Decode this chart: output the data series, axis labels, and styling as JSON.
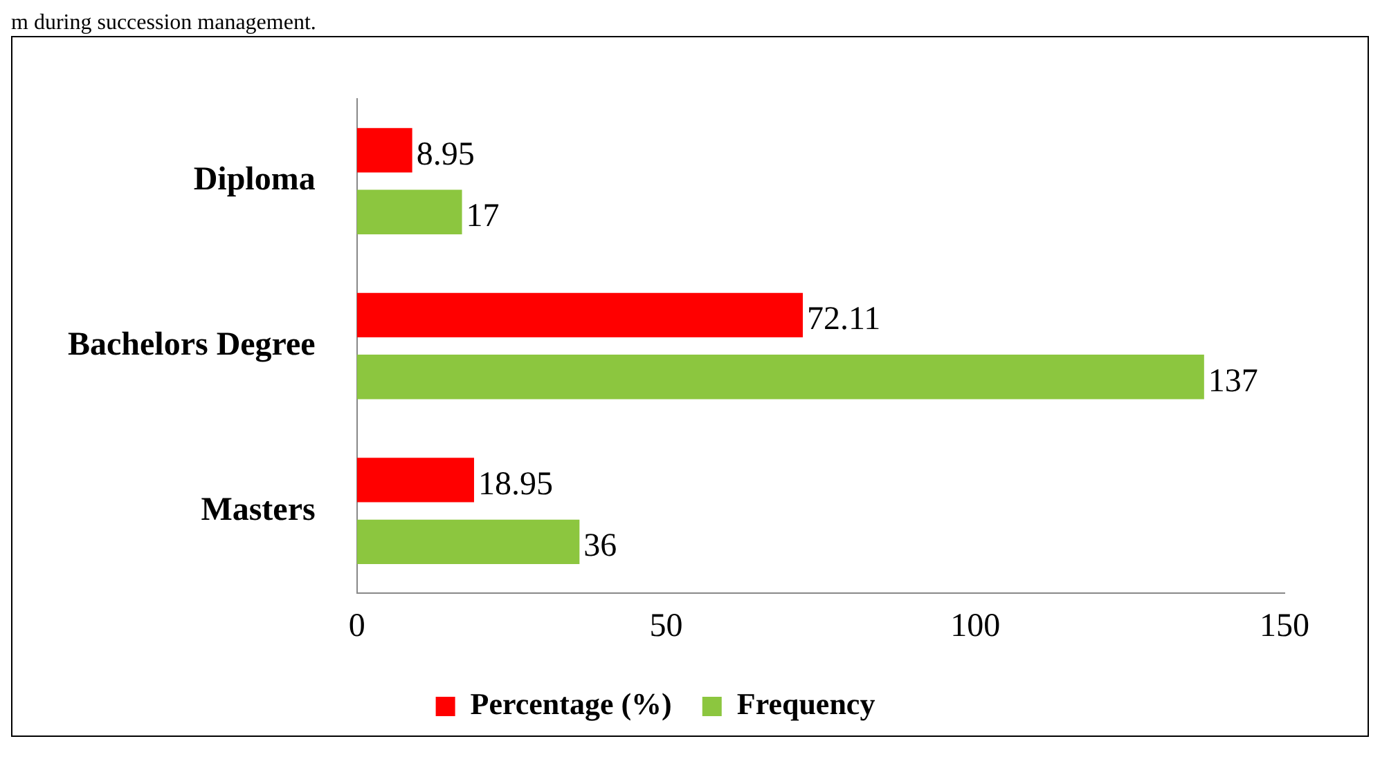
{
  "chart_data": {
    "type": "bar",
    "orientation": "horizontal",
    "annotations": [
      "m during succession management."
    ],
    "categories": [
      "Diploma",
      "Bachelors Degree",
      "Masters"
    ],
    "series": [
      {
        "name": "Percentage (%)",
        "color": "#ff0000",
        "values": [
          8.95,
          72.11,
          18.95
        ]
      },
      {
        "name": "Frequency",
        "color": "#8cc63f",
        "values": [
          17,
          137,
          36
        ]
      }
    ],
    "xlim": [
      0,
      150
    ],
    "xticks": [
      0,
      50,
      100,
      150
    ],
    "data_labels": true,
    "legend": "bottom",
    "grid": false
  }
}
